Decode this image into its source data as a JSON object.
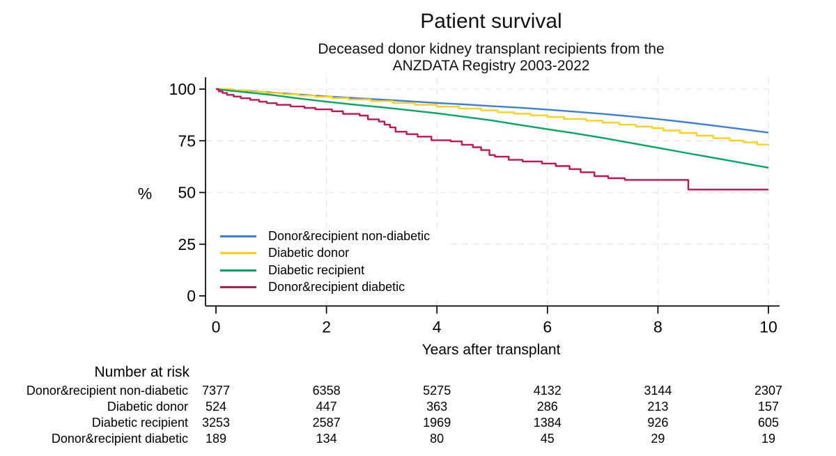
{
  "chart_data": {
    "type": "line",
    "subtype": "kaplan-meier-survival",
    "title": "Patient survival",
    "subtitle_line1": "Deceased donor kidney transplant recipients from the",
    "subtitle_line2": "ANZDATA Registry 2003-2022",
    "xlabel": "Years after transplant",
    "ylabel": "%",
    "xlim": [
      0,
      10
    ],
    "ylim": [
      0,
      100
    ],
    "xticks": [
      0,
      2,
      4,
      6,
      8,
      10
    ],
    "yticks": [
      0,
      25,
      50,
      75,
      100
    ],
    "grid": "dashed light-gray horizontal at 25/50/75/100 and vertical at 2/4/6/8/10",
    "legend_position": "inside lower-left",
    "axis_color": "#000000",
    "grid_color": "#e7e7e7",
    "series": [
      {
        "name": "Donor&recipient non-diabetic",
        "color": "#3d7ed9",
        "style": "line",
        "points": [
          [
            0,
            100
          ],
          [
            0.5,
            99.2
          ],
          [
            1,
            98.4
          ],
          [
            1.5,
            97.4
          ],
          [
            2,
            96.5
          ],
          [
            2.5,
            95.7
          ],
          [
            3,
            94.9
          ],
          [
            3.5,
            94.1
          ],
          [
            4,
            93.3
          ],
          [
            4.5,
            92.6
          ],
          [
            5,
            91.8
          ],
          [
            5.5,
            91.0
          ],
          [
            6,
            90.1
          ],
          [
            6.5,
            89.1
          ],
          [
            7,
            88.0
          ],
          [
            7.5,
            86.8
          ],
          [
            8,
            85.5
          ],
          [
            8.5,
            84.0
          ],
          [
            9,
            82.4
          ],
          [
            9.5,
            80.7
          ],
          [
            10,
            79.0
          ]
        ]
      },
      {
        "name": "Diabetic donor",
        "color": "#ffd117",
        "style": "step",
        "points": [
          [
            0,
            100
          ],
          [
            0.3,
            99.4
          ],
          [
            0.6,
            98.7
          ],
          [
            0.9,
            98.1
          ],
          [
            1.2,
            97.5
          ],
          [
            1.5,
            96.9
          ],
          [
            1.8,
            96.3
          ],
          [
            2.1,
            95.7
          ],
          [
            2.4,
            95.0
          ],
          [
            2.8,
            94.2
          ],
          [
            3.2,
            93.3
          ],
          [
            3.6,
            92.4
          ],
          [
            4,
            91.5
          ],
          [
            4.4,
            90.6
          ],
          [
            4.8,
            89.7
          ],
          [
            5.1,
            88.8
          ],
          [
            5.4,
            88.1
          ],
          [
            5.7,
            87.3
          ],
          [
            6,
            86.5
          ],
          [
            6.3,
            85.6
          ],
          [
            6.7,
            84.7
          ],
          [
            7,
            83.8
          ],
          [
            7.3,
            82.8
          ],
          [
            7.6,
            81.9
          ],
          [
            7.9,
            81.1
          ],
          [
            8.1,
            80.0
          ],
          [
            8.4,
            78.8
          ],
          [
            8.7,
            77.5
          ],
          [
            9,
            76.3
          ],
          [
            9.3,
            75.1
          ],
          [
            9.55,
            74.2
          ],
          [
            9.8,
            73.2
          ],
          [
            10,
            73.0
          ]
        ]
      },
      {
        "name": "Diabetic recipient",
        "color": "#00a664",
        "style": "line",
        "points": [
          [
            0,
            100
          ],
          [
            0.5,
            98.6
          ],
          [
            1,
            97.2
          ],
          [
            1.5,
            95.5
          ],
          [
            2,
            93.9
          ],
          [
            2.5,
            92.5
          ],
          [
            3,
            91.2
          ],
          [
            3.5,
            89.8
          ],
          [
            4,
            88.3
          ],
          [
            4.5,
            86.6
          ],
          [
            5,
            84.8
          ],
          [
            5.5,
            82.7
          ],
          [
            6,
            80.6
          ],
          [
            6.5,
            78.6
          ],
          [
            7,
            76.4
          ],
          [
            7.5,
            74.0
          ],
          [
            8,
            71.6
          ],
          [
            8.5,
            69.2
          ],
          [
            9,
            66.8
          ],
          [
            9.5,
            64.4
          ],
          [
            10,
            62.0
          ]
        ]
      },
      {
        "name": "Donor&recipient diabetic",
        "color": "#c41350",
        "style": "step",
        "points": [
          [
            0,
            100
          ],
          [
            0.05,
            98.9
          ],
          [
            0.12,
            98.1
          ],
          [
            0.2,
            97.2
          ],
          [
            0.32,
            96.4
          ],
          [
            0.45,
            95.6
          ],
          [
            0.62,
            94.8
          ],
          [
            0.78,
            93.9
          ],
          [
            0.92,
            93.2
          ],
          [
            1.1,
            92.4
          ],
          [
            1.35,
            91.6
          ],
          [
            1.6,
            90.9
          ],
          [
            1.8,
            90.2
          ],
          [
            2.1,
            89.3
          ],
          [
            2.3,
            88.0
          ],
          [
            2.6,
            87.2
          ],
          [
            2.75,
            85.4
          ],
          [
            2.95,
            84.3
          ],
          [
            3.05,
            82.8
          ],
          [
            3.15,
            81.5
          ],
          [
            3.25,
            79.4
          ],
          [
            3.45,
            78.2
          ],
          [
            3.65,
            77.0
          ],
          [
            3.9,
            75.3
          ],
          [
            4.25,
            74.7
          ],
          [
            4.45,
            73.1
          ],
          [
            4.65,
            71.9
          ],
          [
            4.8,
            70.5
          ],
          [
            4.95,
            68.1
          ],
          [
            5.05,
            67.3
          ],
          [
            5.3,
            65.8
          ],
          [
            5.55,
            65.0
          ],
          [
            5.9,
            64.0
          ],
          [
            6.15,
            62.8
          ],
          [
            6.4,
            61.3
          ],
          [
            6.6,
            59.8
          ],
          [
            6.85,
            57.9
          ],
          [
            7.1,
            56.9
          ],
          [
            7.4,
            56.1
          ],
          [
            8.55,
            51.4
          ],
          [
            10,
            51.4
          ]
        ]
      }
    ]
  },
  "risk_table": {
    "header": "Number at risk",
    "time_points": [
      0,
      2,
      4,
      6,
      8,
      10
    ],
    "rows": [
      {
        "label": "Donor&recipient non-diabetic",
        "values": [
          "7377",
          "6358",
          "5275",
          "4132",
          "3144",
          "2307"
        ]
      },
      {
        "label": "Diabetic donor",
        "values": [
          "524",
          "447",
          "363",
          "286",
          "213",
          "157"
        ]
      },
      {
        "label": "Diabetic recipient",
        "values": [
          "3253",
          "2587",
          "1969",
          "1384",
          "926",
          "605"
        ]
      },
      {
        "label": "Donor&recipient diabetic",
        "values": [
          "189",
          "134",
          "80",
          "45",
          "29",
          "19"
        ]
      }
    ]
  }
}
